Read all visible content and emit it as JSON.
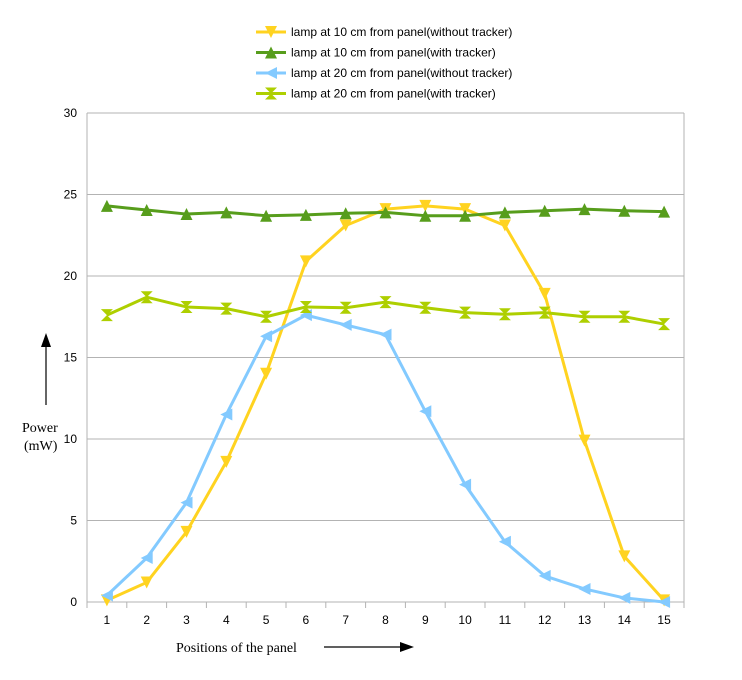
{
  "chart_data": {
    "type": "line",
    "title": "",
    "xlabel": "Positions of the panel",
    "ylabel_line1": "Power",
    "ylabel_line2": "(mW)",
    "categories": [
      "1",
      "2",
      "3",
      "4",
      "5",
      "6",
      "7",
      "8",
      "9",
      "10",
      "11",
      "12",
      "13",
      "14",
      "15"
    ],
    "ylim": [
      0,
      30
    ],
    "yticks": [
      0,
      5,
      10,
      15,
      20,
      25,
      30
    ],
    "grid": true,
    "legend_position": "top",
    "series": [
      {
        "name": "lamp at 10 cm from panel(without tracker)",
        "color": "#FFD320",
        "marker": "triangle-down",
        "values": [
          0.1,
          1.2,
          4.3,
          8.6,
          14.0,
          20.9,
          23.1,
          24.1,
          24.3,
          24.1,
          23.1,
          18.9,
          9.9,
          2.8,
          0.1
        ]
      },
      {
        "name": "lamp at 10 cm from panel(with tracker)",
        "color": "#579D1C",
        "marker": "triangle-up",
        "values": [
          24.3,
          24.05,
          23.8,
          23.9,
          23.7,
          23.75,
          23.85,
          23.9,
          23.7,
          23.7,
          23.9,
          24.0,
          24.1,
          24.0,
          23.95
        ]
      },
      {
        "name": "lamp at 20 cm  from panel(without tracker)",
        "color": "#83CAFF",
        "marker": "triangle-left",
        "values": [
          0.4,
          2.7,
          6.1,
          11.5,
          16.3,
          17.6,
          17.0,
          16.4,
          11.7,
          7.2,
          3.7,
          1.6,
          0.8,
          0.25,
          0.0
        ]
      },
      {
        "name": "lamp at 20 cm from panel(with tracker)",
        "color": "#AECF00",
        "marker": "hourglass",
        "values": [
          17.6,
          18.7,
          18.1,
          18.0,
          17.5,
          18.1,
          18.05,
          18.4,
          18.05,
          17.75,
          17.65,
          17.75,
          17.5,
          17.5,
          17.05
        ]
      }
    ]
  }
}
